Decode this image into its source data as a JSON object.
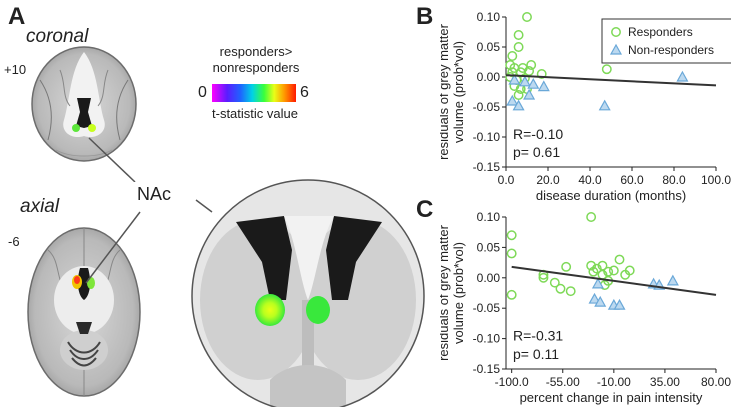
{
  "panel_a": {
    "letter": "A",
    "coronal_label": "coronal",
    "coronal_coord": "+10",
    "axial_label": "axial",
    "axial_coord": "-6",
    "roi_label": "NAc",
    "colorbar": {
      "title_line1": "responders>",
      "title_line2": "nonresponders",
      "min_label": "0",
      "max_label": "6",
      "caption": "t-statistic value"
    }
  },
  "colors": {
    "responders": "#7ed957",
    "non_responders": "#6aa8d8",
    "regression_line": "#333333"
  },
  "chart_data": [
    {
      "panel": "B",
      "type": "scatter",
      "xlabel": "disease duration (months)",
      "ylabel_line1": "residuals of grey matter",
      "ylabel_line2": "volume (prob*vol)",
      "xlim": [
        0,
        100
      ],
      "ylim": [
        -0.15,
        0.1
      ],
      "xticks": [
        0,
        20,
        40,
        60,
        80,
        100
      ],
      "xtick_labels": [
        "0.0",
        "20.0",
        "40.0",
        "60.0",
        "80.0",
        "100.0"
      ],
      "yticks": [
        0.1,
        0.05,
        0.0,
        -0.05,
        -0.1,
        -0.15
      ],
      "ytick_labels": [
        "0.10",
        "0.05",
        "0.00",
        "-0.05",
        "-0.10",
        "-0.15"
      ],
      "legend": [
        "Responders",
        "Non-responders"
      ],
      "stats_r": "R=-0.10",
      "stats_p": "p=  0.61",
      "fit_line": [
        [
          0,
          0.003
        ],
        [
          100,
          -0.014
        ]
      ],
      "series": [
        {
          "name": "Responders",
          "marker": "circle",
          "points": [
            [
              10,
              0.1
            ],
            [
              6,
              0.07
            ],
            [
              6,
              0.05
            ],
            [
              3,
              0.035
            ],
            [
              2,
              0.02
            ],
            [
              4,
              0.015
            ],
            [
              8,
              0.015
            ],
            [
              12,
              0.02
            ],
            [
              3,
              0.008
            ],
            [
              7,
              0.008
            ],
            [
              11,
              0.01
            ],
            [
              17,
              0.005
            ],
            [
              2,
              0.0
            ],
            [
              5,
              -0.005
            ],
            [
              9,
              -0.002
            ],
            [
              4,
              -0.015
            ],
            [
              7,
              -0.02
            ],
            [
              10,
              -0.02
            ],
            [
              6,
              -0.03
            ],
            [
              48,
              0.013
            ]
          ]
        },
        {
          "name": "Non-responders",
          "marker": "triangle",
          "points": [
            [
              4,
              -0.005
            ],
            [
              9,
              -0.008
            ],
            [
              13,
              -0.012
            ],
            [
              18,
              -0.016
            ],
            [
              11,
              -0.03
            ],
            [
              3,
              -0.04
            ],
            [
              6,
              -0.048
            ],
            [
              47,
              -0.048
            ],
            [
              84,
              0.0
            ]
          ]
        }
      ]
    },
    {
      "panel": "C",
      "type": "scatter",
      "xlabel": "percent change in pain intensity",
      "ylabel_line1": "residuals of grey matter",
      "ylabel_line2": "volume (prob*vol)",
      "xlim": [
        -105,
        80
      ],
      "ylim": [
        -0.15,
        0.1
      ],
      "xticks": [
        -100,
        -55,
        -10,
        35,
        80
      ],
      "xtick_labels": [
        "-100.0",
        "-55.00",
        "-10.00",
        "35.00",
        "80.00"
      ],
      "yticks": [
        0.1,
        0.05,
        0.0,
        -0.05,
        -0.1,
        -0.15
      ],
      "ytick_labels": [
        "0.10",
        "0.05",
        "0.00",
        "-0.05",
        "-0.10",
        "-0.15"
      ],
      "stats_r": "R=-0.31",
      "stats_p": "p=  0.11",
      "fit_line": [
        [
          -100,
          0.018
        ],
        [
          80,
          -0.028
        ]
      ],
      "series": [
        {
          "name": "Responders",
          "marker": "circle",
          "points": [
            [
              -100,
              0.07
            ],
            [
              -100,
              0.04
            ],
            [
              -100,
              -0.028
            ],
            [
              -30,
              0.1
            ],
            [
              -30,
              0.02
            ],
            [
              -25,
              0.015
            ],
            [
              -20,
              0.02
            ],
            [
              -15,
              0.01
            ],
            [
              -10,
              0.012
            ],
            [
              -5,
              0.03
            ],
            [
              -28,
              0.01
            ],
            [
              -20,
              0.005
            ],
            [
              -15,
              -0.005
            ],
            [
              0,
              0.005
            ],
            [
              -72,
              0.005
            ],
            [
              -72,
              0.0
            ],
            [
              -52,
              0.018
            ],
            [
              -62,
              -0.008
            ],
            [
              -57,
              -0.018
            ],
            [
              -48,
              -0.022
            ],
            [
              -18,
              -0.012
            ],
            [
              4,
              0.012
            ]
          ]
        },
        {
          "name": "Non-responders",
          "marker": "triangle",
          "points": [
            [
              -24,
              -0.01
            ],
            [
              -27,
              -0.035
            ],
            [
              -22,
              -0.04
            ],
            [
              -10,
              -0.045
            ],
            [
              -5,
              -0.045
            ],
            [
              25,
              -0.01
            ],
            [
              30,
              -0.012
            ],
            [
              42,
              -0.005
            ]
          ]
        }
      ]
    }
  ]
}
